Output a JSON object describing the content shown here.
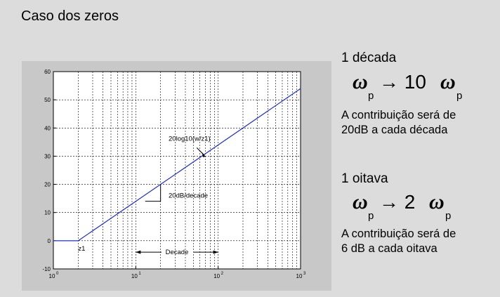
{
  "title": "Caso dos zeros",
  "chart_data": {
    "type": "line",
    "xscale": "log",
    "xlim": [
      1,
      1000
    ],
    "ylim": [
      -10,
      60
    ],
    "grid": true,
    "x_ticks": [
      "10",
      "10",
      "10",
      "10"
    ],
    "x_tick_exponents": [
      "0",
      "1",
      "2",
      "3"
    ],
    "y_ticks": [
      "60",
      "50",
      "40",
      "30",
      "20",
      "10",
      "0",
      "-10"
    ],
    "series": [
      {
        "color": "#1f2fd0",
        "x": [
          1,
          2,
          1000
        ],
        "y": [
          0,
          0,
          53.98
        ]
      }
    ],
    "annotations": {
      "formula": "20log10(w/z1)",
      "slope": "20dB/decade",
      "zero": "z1",
      "decade": "Decade"
    }
  },
  "decada": {
    "heading": "1 década",
    "omega": "ω",
    "sub": "p",
    "arrow": "→ 10",
    "note_line1": "A contribuição será de",
    "note_line2": "20dB a cada década"
  },
  "oitava": {
    "heading": "1 oitava",
    "omega": "ω",
    "sub": "p",
    "arrow": "→ 2",
    "note_line1": "A contribuição será de",
    "note_line2": "6 dB a cada oitava"
  }
}
